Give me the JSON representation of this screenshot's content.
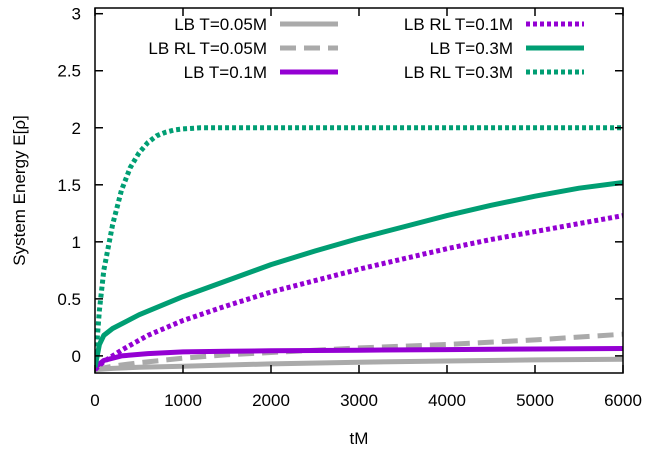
{
  "chart_data": {
    "type": "line",
    "title": "",
    "xlabel": "tM",
    "ylabel": "System Energy E[ρ]",
    "xlim": [
      0,
      6000
    ],
    "ylim": [
      -0.15,
      3.05
    ],
    "xticks": [
      0,
      1000,
      2000,
      3000,
      4000,
      5000,
      6000
    ],
    "yticks": [
      0,
      0.5,
      1,
      1.5,
      2,
      2.5,
      3
    ],
    "xtick_labels": [
      "0",
      "1000",
      "2000",
      "3000",
      "4000",
      "5000",
      "6000"
    ],
    "ytick_labels": [
      "0",
      "0.5",
      "1",
      "1.5",
      "2",
      "2.5",
      "3"
    ],
    "grid": false,
    "legend_position": "top, two columns",
    "series": [
      {
        "name": "LB T=0.05M",
        "color": "#aaaaaa",
        "dash": "solid",
        "points": [
          [
            0,
            -0.12
          ],
          [
            200,
            -0.11
          ],
          [
            500,
            -0.1
          ],
          [
            1000,
            -0.09
          ],
          [
            1500,
            -0.08
          ],
          [
            2000,
            -0.07
          ],
          [
            3000,
            -0.055
          ],
          [
            4000,
            -0.045
          ],
          [
            5000,
            -0.035
          ],
          [
            6000,
            -0.03
          ]
        ]
      },
      {
        "name": "LB RL T=0.05M",
        "color": "#aaaaaa",
        "dash": "dashed",
        "points": [
          [
            0,
            -0.12
          ],
          [
            200,
            -0.09
          ],
          [
            500,
            -0.06
          ],
          [
            1000,
            -0.02
          ],
          [
            1500,
            0.01
          ],
          [
            2000,
            0.03
          ],
          [
            3000,
            0.07
          ],
          [
            4000,
            0.1
          ],
          [
            5000,
            0.14
          ],
          [
            6000,
            0.19
          ]
        ]
      },
      {
        "name": "LB T=0.1M",
        "color": "#9400d3",
        "dash": "solid",
        "points": [
          [
            0,
            -0.1
          ],
          [
            100,
            -0.04
          ],
          [
            300,
            0.0
          ],
          [
            600,
            0.02
          ],
          [
            1000,
            0.035
          ],
          [
            1500,
            0.04
          ],
          [
            2000,
            0.045
          ],
          [
            3000,
            0.05
          ],
          [
            4000,
            0.055
          ],
          [
            5000,
            0.06
          ],
          [
            6000,
            0.065
          ]
        ]
      },
      {
        "name": "LB RL T=0.1M",
        "color": "#9400d3",
        "dash": "dotted",
        "points": [
          [
            0,
            -0.12
          ],
          [
            100,
            -0.05
          ],
          [
            300,
            0.05
          ],
          [
            600,
            0.18
          ],
          [
            1000,
            0.31
          ],
          [
            1500,
            0.44
          ],
          [
            2000,
            0.56
          ],
          [
            2500,
            0.66
          ],
          [
            3000,
            0.76
          ],
          [
            3500,
            0.85
          ],
          [
            4000,
            0.94
          ],
          [
            4500,
            1.02
          ],
          [
            5000,
            1.09
          ],
          [
            5500,
            1.16
          ],
          [
            6000,
            1.23
          ]
        ]
      },
      {
        "name": "LB T=0.3M",
        "color": "#009e73",
        "dash": "solid",
        "points": [
          [
            0,
            -0.1
          ],
          [
            50,
            0.1
          ],
          [
            100,
            0.18
          ],
          [
            200,
            0.24
          ],
          [
            500,
            0.36
          ],
          [
            1000,
            0.52
          ],
          [
            1500,
            0.66
          ],
          [
            2000,
            0.8
          ],
          [
            2500,
            0.92
          ],
          [
            3000,
            1.03
          ],
          [
            3500,
            1.13
          ],
          [
            4000,
            1.23
          ],
          [
            4500,
            1.32
          ],
          [
            5000,
            1.4
          ],
          [
            5500,
            1.47
          ],
          [
            6000,
            1.52
          ]
        ]
      },
      {
        "name": "LB RL T=0.3M",
        "color": "#009e73",
        "dash": "dotted",
        "points": [
          [
            0,
            -0.1
          ],
          [
            50,
            0.4
          ],
          [
            100,
            0.75
          ],
          [
            200,
            1.15
          ],
          [
            300,
            1.45
          ],
          [
            400,
            1.65
          ],
          [
            500,
            1.78
          ],
          [
            600,
            1.87
          ],
          [
            700,
            1.93
          ],
          [
            800,
            1.96
          ],
          [
            900,
            1.98
          ],
          [
            1000,
            1.99
          ],
          [
            1200,
            2.0
          ],
          [
            2000,
            2.0
          ],
          [
            3000,
            2.0
          ],
          [
            4000,
            2.0
          ],
          [
            5000,
            2.0
          ],
          [
            6000,
            2.0
          ]
        ]
      }
    ]
  }
}
